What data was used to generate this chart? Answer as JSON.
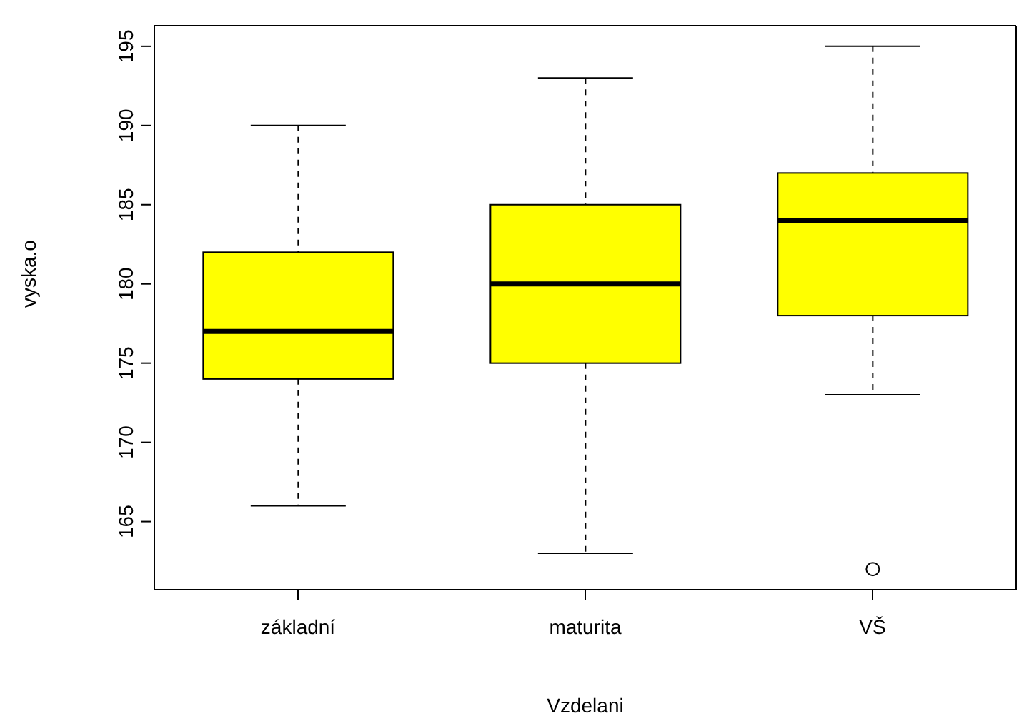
{
  "chart_data": {
    "type": "box",
    "xlabel": "Vzdelani",
    "ylabel": "vyska.o",
    "categories": [
      "základní",
      "maturita",
      "VŠ"
    ],
    "color": "#ffff00",
    "boxes": [
      {
        "low": 166,
        "q1": 174,
        "median": 177,
        "q3": 182,
        "high": 190
      },
      {
        "low": 163,
        "q1": 175,
        "median": 180,
        "q3": 185,
        "high": 193
      },
      {
        "low": 173,
        "q1": 178,
        "median": 184,
        "q3": 187,
        "high": 195,
        "outliers": [
          162
        ]
      }
    ],
    "ylim": [
      160.7,
      196.3
    ],
    "yticks": [
      165,
      170,
      175,
      180,
      185,
      190,
      195
    ]
  }
}
